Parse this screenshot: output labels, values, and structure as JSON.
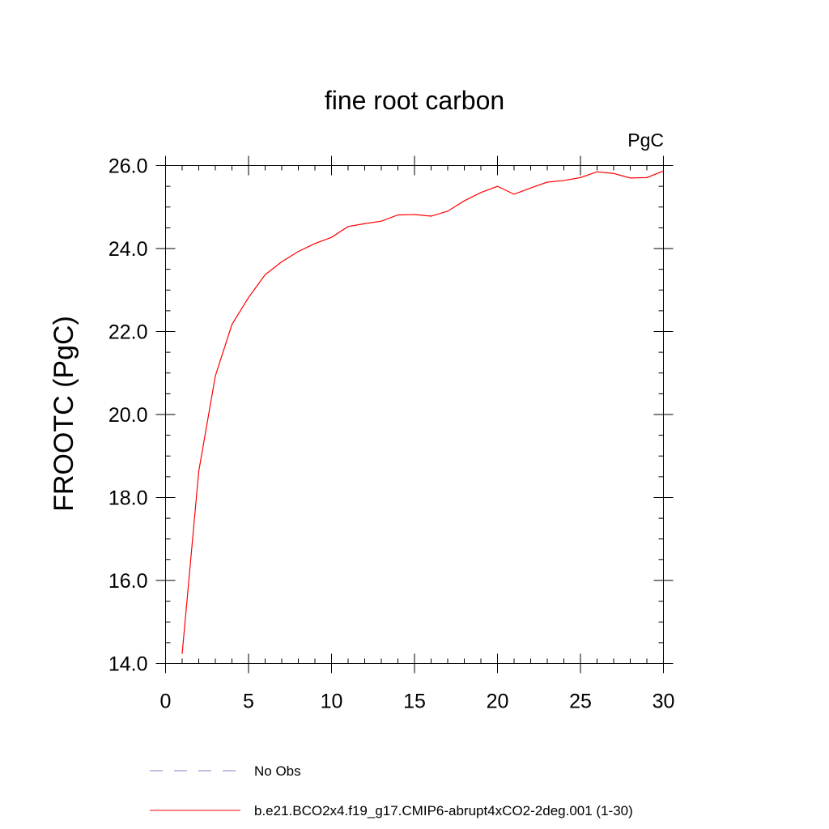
{
  "chart_data": {
    "type": "line",
    "title": "fine root carbon",
    "units_label": "PgC",
    "xlabel": "",
    "ylabel": "FROOTC  (PgC)",
    "xlim": [
      0,
      30
    ],
    "ylim": [
      14.0,
      26.0
    ],
    "x_ticks": [
      "0",
      "5",
      "10",
      "15",
      "20",
      "25",
      "30"
    ],
    "y_ticks": [
      "14.0",
      "16.0",
      "18.0",
      "20.0",
      "22.0",
      "24.0",
      "26.0"
    ],
    "grid": false,
    "legend_placement": "bottom",
    "series": [
      {
        "name": "b.e21.BCO2x4.f19_g17.CMIP6-abrupt4xCO2-2deg.001 (1-30)",
        "color": "#ff0000",
        "style": "solid",
        "x": [
          1,
          2,
          3,
          4,
          5,
          6,
          7,
          8,
          9,
          10,
          11,
          12,
          13,
          14,
          15,
          16,
          17,
          18,
          19,
          20,
          21,
          22,
          23,
          24,
          25,
          26,
          27,
          28,
          29,
          30
        ],
        "y": [
          14.23,
          18.63,
          20.93,
          22.17,
          22.82,
          23.37,
          23.68,
          23.93,
          24.12,
          24.27,
          24.53,
          24.6,
          24.66,
          24.81,
          24.82,
          24.78,
          24.9,
          25.15,
          25.35,
          25.5,
          25.31,
          25.46,
          25.6,
          25.64,
          25.71,
          25.85,
          25.81,
          25.7,
          25.71,
          25.87
        ]
      }
    ],
    "legend": [
      {
        "label": "No Obs",
        "color": "#8080c0",
        "style": "dashed"
      },
      {
        "label": "b.e21.BCO2x4.f19_g17.CMIP6-abrupt4xCO2-2deg.001 (1-30)",
        "color": "#ff0000",
        "style": "solid"
      }
    ]
  }
}
